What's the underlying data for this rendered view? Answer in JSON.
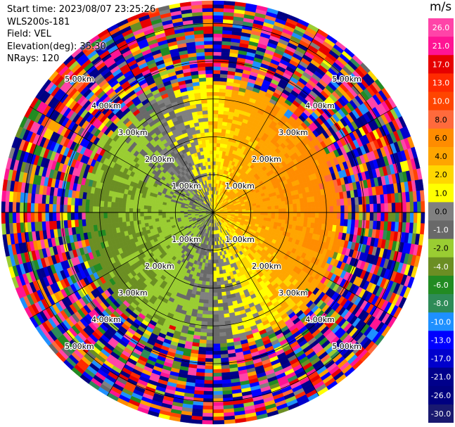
{
  "header": {
    "start_time": "Start time: 2023/08/07 23:25:26",
    "instrument": "WLS200s-181",
    "field": "Field: VEL",
    "elevation": "Elevation(deg): 35.30",
    "nrays": "NRays: 120"
  },
  "colorbar": {
    "unit": "m/s",
    "ticks": [
      "26.0",
      "21.0",
      "17.0",
      "13.0",
      "10.0",
      "8.0",
      "6.0",
      "4.0",
      "2.0",
      "1.0",
      "0.0",
      "-1.0",
      "-2.0",
      "-4.0",
      "-6.0",
      "-8.0",
      "-10.0",
      "-13.0",
      "-17.0",
      "-21.0",
      "-26.0",
      "-30.0"
    ],
    "colors": [
      "#ff44a8",
      "#ff1493",
      "#e60000",
      "#ff2a00",
      "#ff4500",
      "#ff6a3c",
      "#ff8c00",
      "#ffa500",
      "#ffd700",
      "#ffff00",
      "#808080",
      "#696969",
      "#9acd32",
      "#6b8e23",
      "#228b22",
      "#2e8b57",
      "#1e90ff",
      "#0000ff",
      "#0000cd",
      "#00008b",
      "#000080",
      "#191970"
    ]
  },
  "chart_data": {
    "type": "ppi",
    "title": "Start time: 2023/08/07 23:25:26",
    "field": "VEL",
    "units": "m/s",
    "elevation_deg": 35.3,
    "n_rays": 120,
    "range_rings_km": [
      1.0,
      2.0,
      3.0,
      4.0,
      5.0
    ],
    "range_ring_labels": [
      "1.00km",
      "2.00km",
      "3.00km",
      "4.00km",
      "5.00km"
    ],
    "azimuth_spokes_deg": [
      0,
      30,
      60,
      90,
      120,
      150,
      180,
      210,
      240,
      270,
      300,
      330
    ],
    "color_scale_boundaries": [
      26.0,
      21.0,
      17.0,
      13.0,
      10.0,
      8.0,
      6.0,
      4.0,
      2.0,
      1.0,
      0.0,
      -1.0,
      -2.0,
      -4.0,
      -6.0,
      -8.0,
      -10.0,
      -13.0,
      -17.0,
      -21.0,
      -26.0,
      -30.0
    ]
  }
}
